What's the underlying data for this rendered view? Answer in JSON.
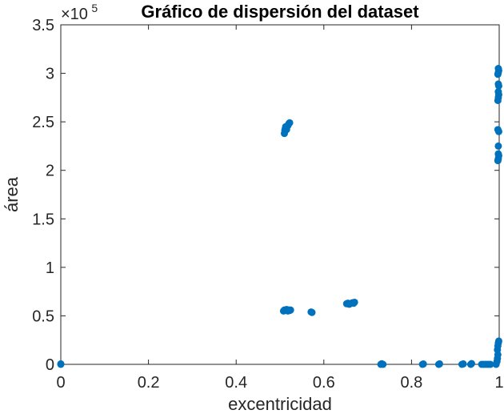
{
  "chart_data": {
    "type": "scatter",
    "title": "Gráfico de dispersión del dataset",
    "xlabel": "excentricidad",
    "ylabel": "área",
    "xlim": [
      0,
      1
    ],
    "ylim": [
      0,
      350000
    ],
    "x_ticks": [
      0,
      0.2,
      0.4,
      0.6,
      0.8,
      1
    ],
    "x_tick_labels": [
      "0",
      "0.2",
      "0.4",
      "0.6",
      "0.8",
      "1"
    ],
    "y_ticks": [
      0,
      50000,
      100000,
      150000,
      200000,
      250000,
      300000,
      350000
    ],
    "y_tick_labels": [
      "0",
      "0.5",
      "1",
      "1.5",
      "2",
      "2.5",
      "3",
      "3.5"
    ],
    "y_multiplier_base": "×10",
    "y_multiplier_exp": "5",
    "grid": false,
    "marker_color": "#0072bd",
    "series": [
      {
        "points": [
          [
            0.0,
            0
          ],
          [
            0.0,
            500
          ],
          [
            0.51,
            238000
          ],
          [
            0.511,
            241000
          ],
          [
            0.512,
            243000
          ],
          [
            0.513,
            245000
          ],
          [
            0.515,
            242000
          ],
          [
            0.518,
            246000
          ],
          [
            0.52,
            248000
          ],
          [
            0.522,
            249000
          ],
          [
            0.508,
            55000
          ],
          [
            0.51,
            56000
          ],
          [
            0.512,
            55500
          ],
          [
            0.515,
            56500
          ],
          [
            0.518,
            55000
          ],
          [
            0.52,
            56000
          ],
          [
            0.522,
            55500
          ],
          [
            0.524,
            56000
          ],
          [
            0.571,
            54000
          ],
          [
            0.573,
            53500
          ],
          [
            0.652,
            62500
          ],
          [
            0.655,
            63000
          ],
          [
            0.658,
            62000
          ],
          [
            0.665,
            63500
          ],
          [
            0.668,
            63000
          ],
          [
            0.67,
            64000
          ],
          [
            0.73,
            0
          ],
          [
            0.732,
            600
          ],
          [
            0.735,
            0
          ],
          [
            0.825,
            0
          ],
          [
            0.827,
            400
          ],
          [
            0.862,
            0
          ],
          [
            0.864,
            500
          ],
          [
            0.915,
            0
          ],
          [
            0.918,
            500
          ],
          [
            0.935,
            0
          ],
          [
            0.937,
            800
          ],
          [
            0.96,
            0
          ],
          [
            0.965,
            0
          ],
          [
            0.97,
            0
          ],
          [
            0.975,
            0
          ],
          [
            0.98,
            0
          ],
          [
            0.993,
            0
          ],
          [
            0.995,
            3000
          ],
          [
            0.996,
            6000
          ],
          [
            0.997,
            10000
          ],
          [
            0.996,
            15000
          ],
          [
            0.997,
            19000
          ],
          [
            0.998,
            22000
          ],
          [
            0.999,
            24000
          ],
          [
            0.997,
            210000
          ],
          [
            0.998,
            212000
          ],
          [
            0.999,
            215000
          ],
          [
            0.998,
            217000
          ],
          [
            0.998,
            225000
          ],
          [
            0.999,
            240000
          ],
          [
            0.997,
            242000
          ],
          [
            0.997,
            272000
          ],
          [
            0.998,
            275000
          ],
          [
            0.999,
            278000
          ],
          [
            0.998,
            281000
          ],
          [
            0.999,
            287000
          ],
          [
            0.998,
            289000
          ],
          [
            0.997,
            299000
          ],
          [
            0.998,
            301000
          ],
          [
            0.999,
            303000
          ],
          [
            0.998,
            305000
          ]
        ]
      }
    ]
  }
}
